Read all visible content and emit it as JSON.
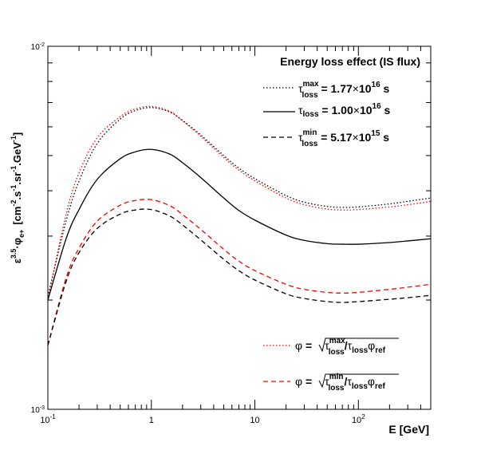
{
  "chart_data": {
    "type": "line",
    "title": "Energy loss effect (IS flux)",
    "xlabel": "E [GeV]",
    "ylabel": {
      "prefix": "ε",
      "sup1": "3.5",
      "mid": "·φ",
      "sub1": "e+",
      "units": "[cm",
      "u1": "-2",
      "u2": ".s",
      "u3": "-1",
      "u4": ".sr",
      "u5": "-1",
      "u6": ".GeV",
      "u7": "-1",
      "u8": "]"
    },
    "x_scale": "log",
    "y_scale": "log",
    "xlim": [
      0.1,
      500
    ],
    "ylim": [
      0.001,
      0.01
    ],
    "x_tick_labels": [
      {
        "value": 0.1,
        "base": "10",
        "exp": "-1"
      },
      {
        "value": 1,
        "base": "1",
        "exp": ""
      },
      {
        "value": 10,
        "base": "10",
        "exp": ""
      },
      {
        "value": 100,
        "base": "10",
        "exp": "2"
      }
    ],
    "y_tick_labels": [
      {
        "value": 0.001,
        "base": "10",
        "exp": "-3"
      },
      {
        "value": 0.01,
        "base": "10",
        "exp": "-2"
      }
    ],
    "x": [
      0.1,
      0.15,
      0.2,
      0.3,
      0.5,
      0.7,
      1,
      1.5,
      2,
      3,
      5,
      7,
      10,
      20,
      30,
      50,
      70,
      100,
      200,
      300,
      500
    ],
    "series": [
      {
        "key": "tmax",
        "color": "#000000",
        "dash": "1.5,2.5",
        "values": [
          0.00205,
          0.0033,
          0.00425,
          0.0054,
          0.0063,
          0.00665,
          0.00678,
          0.0066,
          0.00625,
          0.0057,
          0.005,
          0.00462,
          0.00432,
          0.00388,
          0.00372,
          0.00362,
          0.0036,
          0.00361,
          0.00368,
          0.00374,
          0.00382
        ]
      },
      {
        "key": "tmax_scaled",
        "color": "#ff0000",
        "dash": "1.5,2.5",
        "values": [
          0.002,
          0.00345,
          0.00448,
          0.0056,
          0.0064,
          0.00672,
          0.00683,
          0.00662,
          0.00623,
          0.00565,
          0.00494,
          0.00456,
          0.00426,
          0.00382,
          0.00366,
          0.00356,
          0.00354,
          0.00355,
          0.00361,
          0.00366,
          0.00374
        ]
      },
      {
        "key": "tnom",
        "color": "#000000",
        "dash": "",
        "values": [
          0.002,
          0.00295,
          0.00355,
          0.0043,
          0.0049,
          0.00512,
          0.0052,
          0.00505,
          0.00478,
          0.00435,
          0.00382,
          0.00353,
          0.00332,
          0.00302,
          0.00292,
          0.00286,
          0.00285,
          0.00285,
          0.00288,
          0.00291,
          0.00295
        ]
      },
      {
        "key": "tmin_scaled",
        "color": "#ff0000",
        "dash": "6,4",
        "values": [
          0.0015,
          0.0023,
          0.00278,
          0.0033,
          0.00365,
          0.00376,
          0.00378,
          0.00364,
          0.00344,
          0.00313,
          0.00276,
          0.00256,
          0.00241,
          0.00221,
          0.00214,
          0.0021,
          0.00209,
          0.0021,
          0.00214,
          0.00217,
          0.00221
        ]
      },
      {
        "key": "tmin",
        "color": "#000000",
        "dash": "6,4",
        "values": [
          0.0015,
          0.00225,
          0.0027,
          0.00315,
          0.00345,
          0.00354,
          0.00355,
          0.00341,
          0.00322,
          0.00293,
          0.00259,
          0.00241,
          0.00227,
          0.00208,
          0.00202,
          0.00198,
          0.00197,
          0.00198,
          0.00201,
          0.00203,
          0.00206
        ]
      }
    ],
    "legend": {
      "placement": "top-right",
      "entries": [
        {
          "series": "tmax",
          "tau": "τ",
          "sup": "max",
          "sub": "loss",
          "eq": " = 1.77",
          "times": "×",
          "ten": "10",
          "exp": "16",
          "unit": " s"
        },
        {
          "series": "tnom",
          "tau": "τ",
          "sup": "",
          "sub": "loss",
          "eq": " = 1.00",
          "times": "×",
          "ten": "10",
          "exp": "16",
          "unit": " s"
        },
        {
          "series": "tmin",
          "tau": "τ",
          "sup": "min",
          "sub": "loss",
          "eq": " = 5.17",
          "times": "×",
          "ten": "10",
          "exp": "15",
          "unit": " s"
        }
      ]
    },
    "legend2": {
      "placement": "bottom-right",
      "entries": [
        {
          "series": "tmax_scaled",
          "phi": "φ",
          "eq": " =",
          "tau1": "τ",
          "sup1": "max",
          "sub1": "loss",
          "slash": "/",
          "tau2": "τ",
          "sub2": "loss",
          "phi2": "φ",
          "sub3": "ref"
        },
        {
          "series": "tmin_scaled",
          "phi": "φ",
          "eq": " =",
          "tau1": "τ",
          "sup1": "min",
          "sub1": "loss",
          "slash": "/",
          "tau2": "τ",
          "sub2": "loss",
          "phi2": "φ",
          "sub3": "ref"
        }
      ]
    },
    "grid": false
  }
}
